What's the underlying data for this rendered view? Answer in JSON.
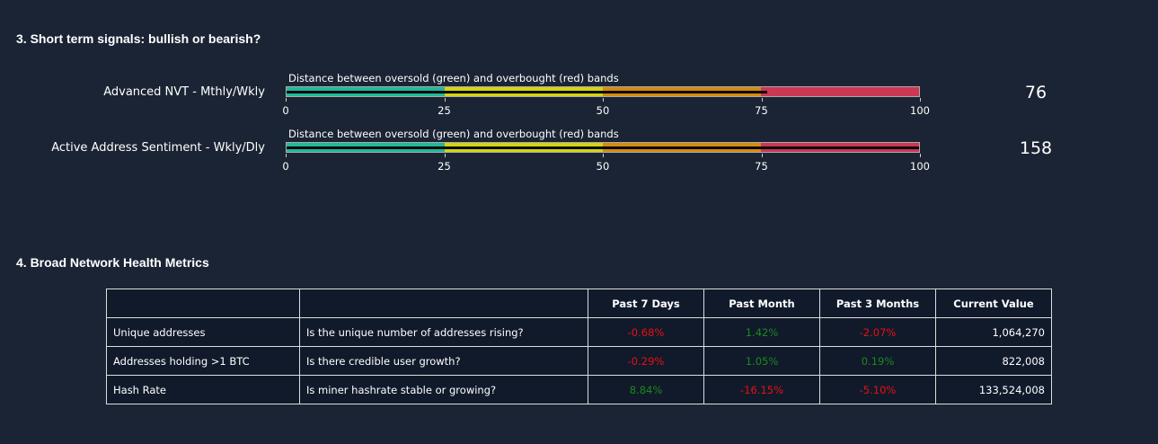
{
  "section3": {
    "title": "3. Short term signals: bullish or bearish?"
  },
  "gauges": [
    {
      "label": "Advanced NVT - Mthly/Wkly",
      "caption": "Distance between oversold (green) and overbought (red) bands",
      "value": 76,
      "display": "76"
    },
    {
      "label": "Active Address Sentiment - Wkly/Dly",
      "caption": "Distance between oversold (green) and overbought (red) bands",
      "value": 158,
      "display": "158"
    }
  ],
  "axis": {
    "ticks": [
      "0",
      "25",
      "50",
      "75",
      "100"
    ],
    "range": [
      0,
      100
    ]
  },
  "band_colors": [
    "#1fb99a",
    "#d4d40f",
    "#d48c0f",
    "#cc3755"
  ],
  "section4": {
    "title": "4. Broad Network Health Metrics"
  },
  "table": {
    "headers": [
      "",
      "",
      "Past 7 Days",
      "Past Month",
      "Past 3 Months",
      "Current Value"
    ],
    "rows": [
      [
        "Unique addresses",
        "Is the unique number of addresses rising?",
        "-0.68%",
        "1.42%",
        "-2.07%",
        "1,064,270"
      ],
      [
        "Addresses holding >1 BTC",
        "Is there credible user growth?",
        "-0.29%",
        "1.05%",
        "0.19%",
        "822,008"
      ],
      [
        "Hash Rate",
        "Is miner hashrate stable or growing?",
        "8.84%",
        "-16.15%",
        "-5.10%",
        "133,524,008"
      ]
    ]
  }
}
